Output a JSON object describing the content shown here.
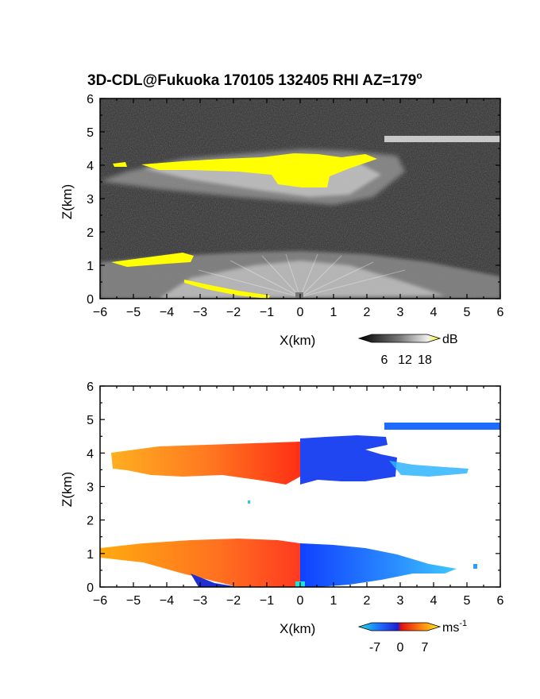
{
  "chart_data": [
    {
      "type": "heatmap",
      "title": "3D-CDL@Fukuoka 170105 132405 RHI AZ=179",
      "title_superscript": "o",
      "xlabel": "X(km)",
      "ylabel": "Z(km)",
      "xlim": [
        -6,
        6
      ],
      "ylim": [
        0,
        6
      ],
      "xticks": [
        "-6",
        "-5",
        "-4",
        "-3",
        "-2",
        "-1",
        "0",
        "1",
        "2",
        "3",
        "4",
        "5",
        "6"
      ],
      "yticks": [
        "0",
        "1",
        "2",
        "3",
        "4",
        "5",
        "6"
      ],
      "colorbar": {
        "unit": "dB",
        "ticks": [
          "6",
          "12",
          "18"
        ],
        "range": [
          0,
          20
        ],
        "colormap": "grayscale-to-yellow"
      },
      "features": [
        {
          "name": "upper cloud layer",
          "x": [
            -5.8,
            2.6
          ],
          "z": [
            3.3,
            4.4
          ]
        },
        {
          "name": "boundary layer",
          "x": [
            -6,
            6
          ],
          "z": [
            0,
            1.3
          ]
        },
        {
          "name": "high layer",
          "x": [
            2.5,
            6
          ],
          "z": [
            4.7,
            4.85
          ]
        }
      ],
      "colors": {
        "background": "#2b2b2b",
        "high_signal": "#ffff00"
      }
    },
    {
      "type": "heatmap",
      "xlabel": "X(km)",
      "ylabel": "Z(km)",
      "xlim": [
        -6,
        6
      ],
      "ylim": [
        0,
        6
      ],
      "xticks": [
        "-6",
        "-5",
        "-4",
        "-3",
        "-2",
        "-1",
        "0",
        "1",
        "2",
        "3",
        "4",
        "5",
        "6"
      ],
      "yticks": [
        "0",
        "1",
        "2",
        "3",
        "4",
        "5",
        "6"
      ],
      "colorbar": {
        "unit": "ms",
        "unit_superscript": "-1",
        "ticks": [
          "-7",
          "0",
          "7"
        ],
        "range": [
          -9,
          9
        ],
        "colormap": "cyan-blue-red-yellow"
      },
      "features": [
        {
          "name": "upper layer positive velocity",
          "x": [
            -6,
            0
          ],
          "z": [
            3.3,
            4.3
          ],
          "sign": "positive"
        },
        {
          "name": "upper layer negative velocity",
          "x": [
            0,
            3.3
          ],
          "z": [
            3.0,
            4.5
          ],
          "sign": "negative"
        },
        {
          "name": "boundary layer positive velocity",
          "x": [
            -6,
            0
          ],
          "z": [
            0,
            1.3
          ],
          "sign": "positive"
        },
        {
          "name": "boundary layer negative velocity",
          "x": [
            0,
            5.3
          ],
          "z": [
            0,
            1.1
          ],
          "sign": "negative"
        },
        {
          "name": "high layer negative velocity",
          "x": [
            2.5,
            6
          ],
          "z": [
            4.7,
            4.9
          ],
          "sign": "negative"
        }
      ],
      "colors": {
        "background": "#ffffff"
      }
    }
  ]
}
